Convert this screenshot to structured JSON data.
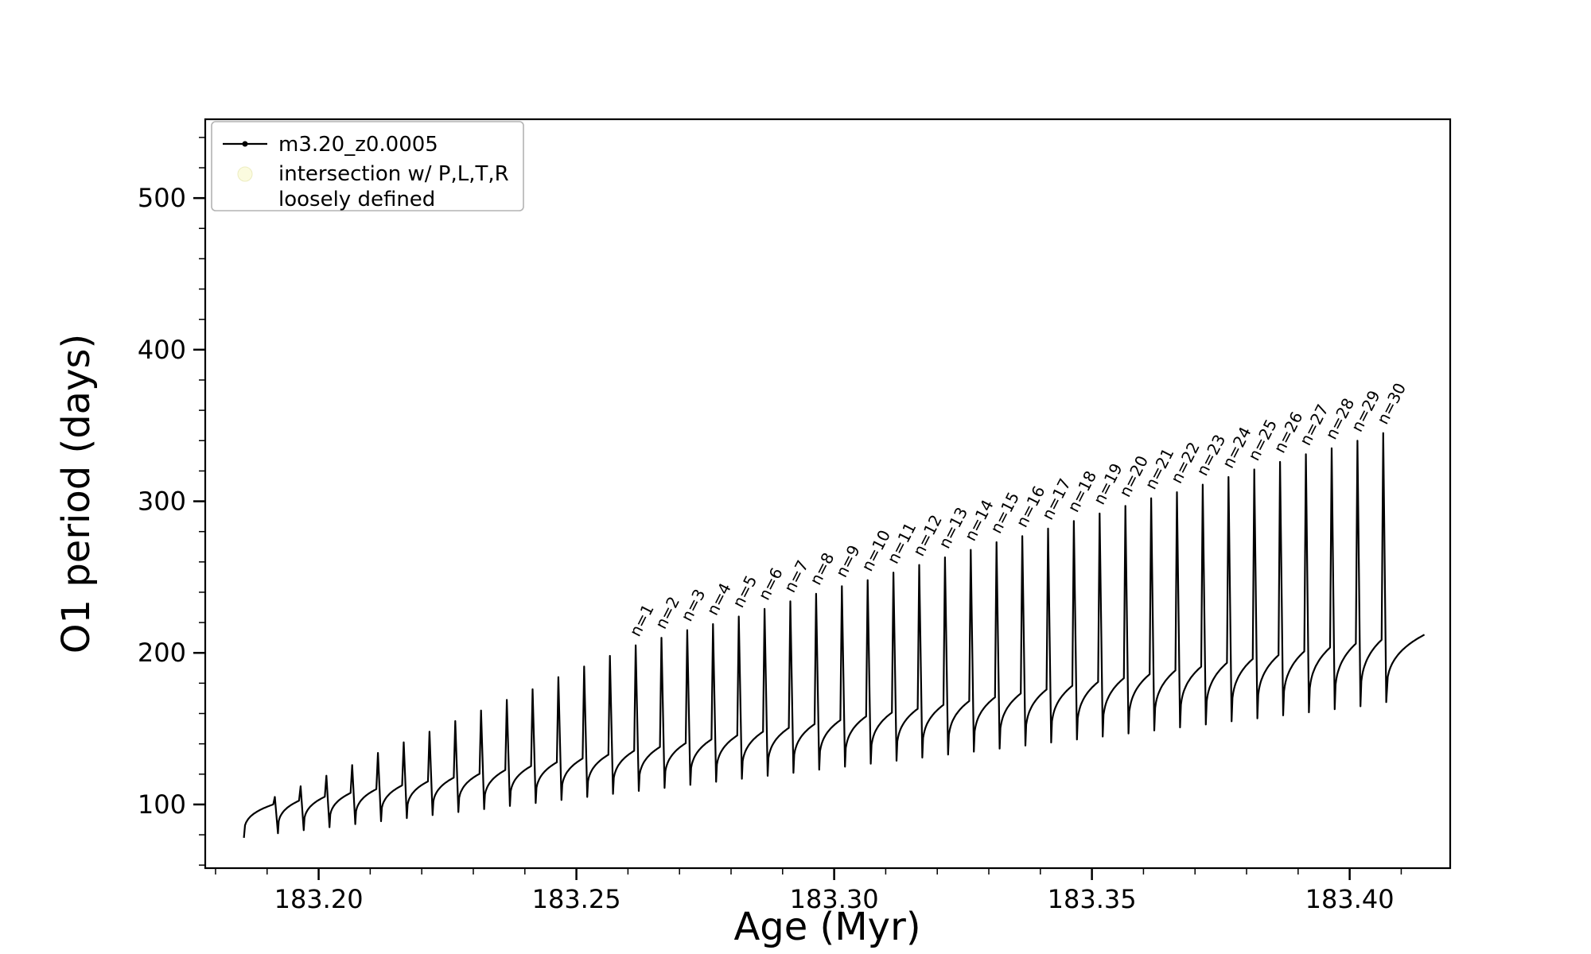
{
  "figure": {
    "background": "#ffffff",
    "line_color": "#000000"
  },
  "chart_data": {
    "type": "line",
    "title": "",
    "xlabel": "Age (Myr)",
    "ylabel": "O1 period (days)",
    "xlim": [
      183.178,
      183.4195
    ],
    "ylim": [
      58,
      552
    ],
    "grid": false,
    "x_major_ticks": [
      183.2,
      183.25,
      183.3,
      183.35,
      183.4
    ],
    "x_tick_labels": [
      "183.20",
      "183.25",
      "183.30",
      "183.35",
      "183.40"
    ],
    "x_minor_step": 0.01,
    "y_major_ticks": [
      100,
      200,
      300,
      400,
      500
    ],
    "y_minor_step": 20,
    "legend": {
      "position": "upper left",
      "frame_color": "#b3b3b3",
      "entries": [
        {
          "type": "line-dot-marker",
          "color": "#000000",
          "label": "m3.20_z0.0005"
        },
        {
          "type": "circle-marker",
          "color": "#fafad2",
          "label_lines": [
            "intersection w/ P,L,T,R",
            "loosely defined"
          ]
        }
      ]
    },
    "series": [
      {
        "name": "m3.20_z0.0005",
        "color": "#000000",
        "start": {
          "x": 183.1855,
          "y": 78
        },
        "end": {
          "x": 183.4145,
          "y": 212
        },
        "dip_ratio": 0.79,
        "recovery_exponent": 0.3,
        "spike_half_width": 0.0003,
        "spikes_columns": [
          "x",
          "peak",
          "plateau"
        ],
        "spikes": [
          [
            183.1915,
            105,
            100.0
          ],
          [
            183.1965,
            112,
            102.5
          ],
          [
            183.2015,
            119,
            105.1
          ],
          [
            183.2065,
            126,
            107.6
          ],
          [
            183.2115,
            134,
            110.1
          ],
          [
            183.2165,
            141,
            112.6
          ],
          [
            183.2215,
            148,
            115.2
          ],
          [
            183.2265,
            155,
            117.7
          ],
          [
            183.2315,
            162,
            120.2
          ],
          [
            183.2365,
            169,
            122.7
          ],
          [
            183.2415,
            176,
            125.3
          ],
          [
            183.2465,
            184,
            127.8
          ],
          [
            183.2515,
            191,
            130.3
          ],
          [
            183.2565,
            198,
            132.8
          ],
          [
            183.2615,
            205,
            135.4
          ],
          [
            183.2665,
            210,
            137.9
          ],
          [
            183.2715,
            215,
            140.4
          ],
          [
            183.2765,
            219,
            142.9
          ],
          [
            183.2815,
            224,
            145.5
          ],
          [
            183.2865,
            229,
            148.0
          ],
          [
            183.2915,
            234,
            150.5
          ],
          [
            183.2965,
            239,
            153.0
          ],
          [
            183.3015,
            244,
            155.6
          ],
          [
            183.3065,
            248,
            158.1
          ],
          [
            183.3115,
            253,
            160.6
          ],
          [
            183.3165,
            258,
            163.1
          ],
          [
            183.3215,
            263,
            165.7
          ],
          [
            183.3265,
            268,
            168.2
          ],
          [
            183.3315,
            273,
            170.7
          ],
          [
            183.3365,
            277,
            173.2
          ],
          [
            183.3415,
            282,
            175.8
          ],
          [
            183.3465,
            287,
            178.3
          ],
          [
            183.3515,
            292,
            180.8
          ],
          [
            183.3565,
            297,
            183.3
          ],
          [
            183.3615,
            302,
            185.9
          ],
          [
            183.3665,
            306,
            188.4
          ],
          [
            183.3715,
            311,
            190.9
          ],
          [
            183.3765,
            316,
            193.4
          ],
          [
            183.3815,
            321,
            196.0
          ],
          [
            183.3865,
            326,
            198.5
          ],
          [
            183.3915,
            331,
            201.0
          ],
          [
            183.3965,
            335,
            203.5
          ],
          [
            183.4015,
            340,
            206.1
          ],
          [
            183.4065,
            345,
            208.6
          ]
        ]
      }
    ],
    "annotations": {
      "rotation_deg": 63,
      "first_spike_index": 14,
      "labels": [
        "n=1",
        "n=2",
        "n=3",
        "n=4",
        "n=5",
        "n=6",
        "n=7",
        "n=8",
        "n=9",
        "n=10",
        "n=11",
        "n=12",
        "n=13",
        "n=14",
        "n=15",
        "n=16",
        "n=17",
        "n=18",
        "n=19",
        "n=20",
        "n=21",
        "n=22",
        "n=23",
        "n=24",
        "n=25",
        "n=26",
        "n=27",
        "n=28",
        "n=29",
        "n=30"
      ]
    }
  }
}
